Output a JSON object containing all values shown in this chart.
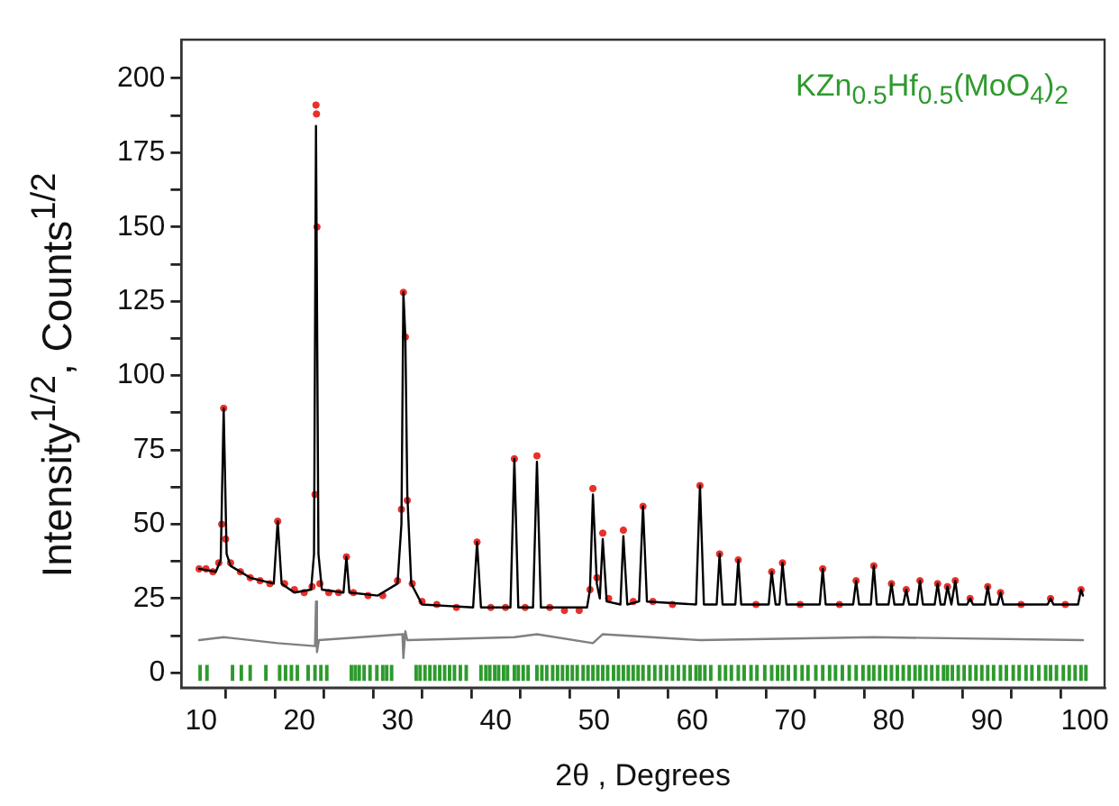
{
  "chart_data": {
    "type": "line",
    "xlabel": "2θ , Degrees",
    "ylabel": "Intensity$^{1/2}$, Counts$^{1/2}$",
    "annotations": [
      "KZn$_{0.5}$Hf$_{0.5}$(MoO$_{4}$)$_{2}$"
    ],
    "xlim": [
      8,
      102
    ],
    "ylim": [
      -5,
      213
    ],
    "xticks": [
      10,
      {
        "value": 15,
        "label": null
      },
      20,
      {
        "value": 25,
        "label": null
      },
      30,
      {
        "value": 35,
        "label": null
      },
      40,
      {
        "value": 45,
        "label": null
      },
      50,
      {
        "value": 55,
        "label": null
      },
      60,
      {
        "value": 65,
        "label": null
      },
      70,
      {
        "value": 75,
        "label": null
      },
      80,
      {
        "value": 85,
        "label": null
      },
      90,
      {
        "value": 95,
        "label": null
      },
      100
    ],
    "yticks": [
      0,
      {
        "value": 12.5,
        "label": null
      },
      25,
      {
        "value": 37.5,
        "label": null
      },
      50,
      {
        "value": 62.5,
        "label": null
      },
      75,
      {
        "value": 87.5,
        "label": null
      },
      100,
      {
        "value": 112.5,
        "label": null
      },
      125,
      {
        "value": 137.5,
        "label": null
      },
      150,
      {
        "value": 162.5,
        "label": null
      },
      175,
      {
        "value": 187.5,
        "label": null
      },
      200
    ],
    "grid": false,
    "legend": false,
    "series": [
      {
        "type": "scatter",
        "marker": "circle",
        "color": "#e8302a",
        "x": [
          9.8,
          10.5,
          11.2,
          11.8,
          12.1,
          12.3,
          12.5,
          13.0,
          14.0,
          15.0,
          16.0,
          17.0,
          17.8,
          18.5,
          19.5,
          20.5,
          21.3,
          21.6,
          21.7,
          21.75,
          21.8,
          22.1,
          23.0,
          24.0,
          24.8,
          25.5,
          27.0,
          28.5,
          30.0,
          30.4,
          30.6,
          30.8,
          31.0,
          31.5,
          32.5,
          34.0,
          36.0,
          38.1,
          39.5,
          41.0,
          41.9,
          43.0,
          44.2,
          45.5,
          47.0,
          48.5,
          49.6,
          49.9,
          50.3,
          50.9,
          51.5,
          53.0,
          54.0,
          55.0,
          56.0,
          58.0,
          60.8,
          62.8,
          64.7,
          66.5,
          68.1,
          69.2,
          71.0,
          73.3,
          75.0,
          76.7,
          78.5,
          80.3,
          81.8,
          83.2,
          85.0,
          86.0,
          86.8,
          88.3,
          90.1,
          91.4,
          93.5,
          96.5,
          98.0,
          99.6
        ],
        "values": [
          35,
          35,
          34,
          37,
          50,
          89,
          45,
          37,
          34,
          32,
          31,
          30,
          51,
          30,
          28,
          27,
          29,
          60,
          191,
          188,
          150,
          30,
          27,
          27,
          39,
          27,
          26,
          26,
          31,
          55,
          128,
          113,
          58,
          30,
          24,
          23,
          22,
          44,
          22,
          22,
          72,
          22,
          73,
          22,
          21,
          21,
          28,
          62,
          32,
          47,
          25,
          48,
          24,
          56,
          24,
          23,
          63,
          40,
          38,
          23,
          34,
          37,
          23,
          35,
          23,
          31,
          36,
          30,
          28,
          31,
          30,
          29,
          31,
          25,
          29,
          27,
          23,
          25,
          23,
          28
        ]
      },
      {
        "marker": "none",
        "color": "#000000",
        "x": [
          9.8,
          11.5,
          12.0,
          12.3,
          12.6,
          13.0,
          15.0,
          17.4,
          17.8,
          18.2,
          19.5,
          21.2,
          21.5,
          21.7,
          21.95,
          22.3,
          24.5,
          24.8,
          25.1,
          28.0,
          30.0,
          30.4,
          30.6,
          30.8,
          31.0,
          31.4,
          32.5,
          37.7,
          38.1,
          38.5,
          41.5,
          41.9,
          42.3,
          43.8,
          44.2,
          44.6,
          49.3,
          49.6,
          49.9,
          50.3,
          50.6,
          50.9,
          51.3,
          52.7,
          53.0,
          53.4,
          54.6,
          55.0,
          55.4,
          60.4,
          60.8,
          61.2,
          62.5,
          62.8,
          63.1,
          64.4,
          64.7,
          65.0,
          67.8,
          68.1,
          68.5,
          68.9,
          69.2,
          69.6,
          73.0,
          73.3,
          73.6,
          76.4,
          76.7,
          77.0,
          78.2,
          78.5,
          78.8,
          80.0,
          80.3,
          80.6,
          81.5,
          81.8,
          82.1,
          82.9,
          83.2,
          83.5,
          84.7,
          85.0,
          85.3,
          85.7,
          86.0,
          86.4,
          86.8,
          87.1,
          88.0,
          88.3,
          88.6,
          89.8,
          90.1,
          90.4,
          91.1,
          91.4,
          91.7,
          96.2,
          96.5,
          96.8,
          99.3,
          99.6,
          99.8
        ],
        "values": [
          35,
          34,
          38,
          89,
          40,
          36,
          32,
          30,
          51,
          30,
          27,
          28,
          40,
          184,
          40,
          28,
          27,
          39,
          27,
          26,
          30,
          50,
          128,
          113,
          60,
          30,
          23,
          22,
          44,
          22,
          22,
          72,
          22,
          22,
          71,
          22,
          22,
          28,
          60,
          30,
          25,
          45,
          24,
          23,
          46,
          23,
          24,
          56,
          24,
          23,
          63,
          23,
          23,
          40,
          23,
          23,
          38,
          23,
          23,
          34,
          23,
          23,
          37,
          23,
          23,
          35,
          23,
          23,
          31,
          23,
          23,
          36,
          23,
          23,
          30,
          23,
          23,
          28,
          23,
          23,
          31,
          23,
          23,
          30,
          23,
          23,
          29,
          23,
          31,
          23,
          23,
          25,
          23,
          23,
          29,
          23,
          23,
          27,
          23,
          23,
          25,
          23,
          23,
          28,
          26
        ]
      },
      {
        "type": "line",
        "marker": "none",
        "color": "#808080",
        "x": [
          9.8,
          12.3,
          17.8,
          21.6,
          21.7,
          21.8,
          22.0,
          30.5,
          30.6,
          30.8,
          31.0,
          41.9,
          44.2,
          49.9,
          50.9,
          60.8,
          78.5,
          99.8
        ],
        "values": [
          11,
          12,
          10,
          9,
          24,
          7,
          11,
          13,
          5,
          14,
          11,
          12,
          13,
          10,
          13,
          11,
          12,
          11
        ]
      },
      {
        "type": "bar",
        "color": "#2e9a2e",
        "x": [
          9.9,
          10.6,
          13.2,
          14.1,
          15.0,
          16.6,
          18.0,
          18.6,
          19.2,
          19.8,
          20.9,
          21.6,
          22.2,
          22.8,
          25.3,
          25.7,
          26.1,
          26.6,
          27.2,
          27.9,
          28.5,
          28.9,
          29.4,
          31.9,
          32.3,
          32.8,
          33.3,
          33.8,
          34.3,
          34.8,
          35.3,
          35.8,
          36.4,
          37.0,
          38.5,
          39.0,
          39.4,
          39.9,
          40.3,
          40.8,
          41.2,
          41.9,
          42.3,
          42.8,
          43.3,
          44.2,
          44.7,
          45.2,
          45.8,
          46.3,
          46.8,
          47.3,
          47.8,
          48.3,
          48.9,
          49.4,
          49.9,
          50.4,
          50.9,
          51.4,
          52.0,
          52.5,
          53.0,
          53.5,
          54.0,
          54.5,
          55.0,
          55.6,
          56.2,
          56.8,
          57.4,
          58.0,
          58.6,
          59.2,
          59.8,
          60.4,
          60.8,
          61.3,
          61.9,
          62.8,
          63.4,
          64.0,
          64.7,
          65.3,
          66.0,
          66.6,
          67.4,
          68.1,
          68.7,
          69.2,
          69.8,
          70.5,
          71.2,
          71.8,
          72.6,
          73.3,
          74.0,
          74.6,
          75.3,
          76.0,
          76.7,
          77.4,
          78.0,
          78.5,
          79.1,
          79.7,
          80.3,
          80.9,
          81.5,
          82.1,
          82.7,
          83.2,
          83.8,
          84.4,
          85.0,
          85.6,
          86.0,
          86.5,
          87.1,
          87.7,
          88.3,
          88.9,
          89.5,
          90.1,
          90.7,
          91.4,
          92.0,
          92.7,
          93.3,
          94.0,
          94.6,
          95.3,
          96.0,
          96.5,
          97.1,
          97.8,
          98.4,
          99.0,
          99.6,
          100.1
        ],
        "base": [
          -2.5,
          -2.5,
          -2.5,
          -2.5,
          -2.5,
          -2.5,
          -2.5,
          -2.5,
          -2.5,
          -2.5,
          -2.5,
          -2.5,
          -2.5,
          -2.5,
          -2.5,
          -2.5,
          -2.5,
          -2.5,
          -2.5,
          -2.5,
          -2.5,
          -2.5,
          -2.5,
          -2.5,
          -2.5,
          -2.5,
          -2.5,
          -2.5,
          -2.5,
          -2.5,
          -2.5,
          -2.5,
          -2.5,
          -2.5,
          -2.5,
          -2.5,
          -2.5,
          -2.5,
          -2.5,
          -2.5,
          -2.5,
          -2.5,
          -2.5,
          -2.5,
          -2.5,
          -2.5,
          -2.5,
          -2.5,
          -2.5,
          -2.5,
          -2.5,
          -2.5,
          -2.5,
          -2.5,
          -2.5,
          -2.5,
          -2.5,
          -2.5,
          -2.5,
          -2.5,
          -2.5,
          -2.5,
          -2.5,
          -2.5,
          -2.5,
          -2.5,
          -2.5,
          -2.5,
          -2.5,
          -2.5,
          -2.5,
          -2.5,
          -2.5,
          -2.5,
          -2.5,
          -2.5,
          -2.5,
          -2.5,
          -2.5,
          -2.5,
          -2.5,
          -2.5,
          -2.5,
          -2.5,
          -2.5,
          -2.5,
          -2.5,
          -2.5,
          -2.5,
          -2.5,
          -2.5,
          -2.5,
          -2.5,
          -2.5,
          -2.5,
          -2.5,
          -2.5,
          -2.5,
          -2.5,
          -2.5,
          -2.5,
          -2.5,
          -2.5,
          -2.5,
          -2.5,
          -2.5,
          -2.5,
          -2.5,
          -2.5,
          -2.5,
          -2.5,
          -2.5,
          -2.5,
          -2.5,
          -2.5,
          -2.5,
          -2.5,
          -2.5,
          -2.5,
          -2.5,
          -2.5,
          -2.5,
          -2.5,
          -2.5,
          -2.5,
          -2.5,
          -2.5,
          -2.5,
          -2.5,
          -2.5,
          -2.5,
          -2.5,
          -2.5,
          -2.5,
          -2.5,
          -2.5,
          -2.5,
          -2.5,
          -2.5,
          -2.5
        ],
        "values": [
          5,
          5,
          5,
          5,
          5,
          5,
          5,
          5,
          5,
          5,
          5,
          5,
          5,
          5,
          5,
          5,
          5,
          5,
          5,
          5,
          5,
          5,
          5,
          5,
          5,
          5,
          5,
          5,
          5,
          5,
          5,
          5,
          5,
          5,
          5,
          5,
          5,
          5,
          5,
          5,
          5,
          5,
          5,
          5,
          5,
          5,
          5,
          5,
          5,
          5,
          5,
          5,
          5,
          5,
          5,
          5,
          5,
          5,
          5,
          5,
          5,
          5,
          5,
          5,
          5,
          5,
          5,
          5,
          5,
          5,
          5,
          5,
          5,
          5,
          5,
          5,
          5,
          5,
          5,
          5,
          5,
          5,
          5,
          5,
          5,
          5,
          5,
          5,
          5,
          5,
          5,
          5,
          5,
          5,
          5,
          5,
          5,
          5,
          5,
          5,
          5,
          5,
          5,
          5,
          5,
          5,
          5,
          5,
          5,
          5,
          5,
          5,
          5,
          5,
          5,
          5,
          5,
          5,
          5,
          5,
          5,
          5,
          5,
          5,
          5,
          5,
          5,
          5,
          5,
          5,
          5,
          5,
          5,
          5,
          5,
          5,
          5,
          5,
          5,
          5
        ]
      }
    ]
  }
}
